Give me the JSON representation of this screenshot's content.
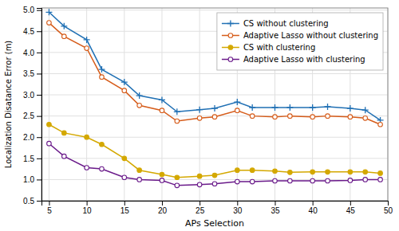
{
  "chart_data": {
    "type": "line",
    "x": [
      5,
      7,
      10,
      12,
      15,
      17,
      20,
      22,
      25,
      27,
      30,
      32,
      35,
      37,
      40,
      42,
      45,
      47,
      49
    ],
    "series": [
      {
        "name": "CS without clustering",
        "color": "#2070b4",
        "marker": "plus",
        "values": [
          4.95,
          4.62,
          4.3,
          3.6,
          3.3,
          2.98,
          2.88,
          2.6,
          2.65,
          2.68,
          2.83,
          2.7,
          2.7,
          2.7,
          2.7,
          2.72,
          2.68,
          2.64,
          2.4
        ]
      },
      {
        "name": "Adaptive Lasso without clustering",
        "color": "#d65c1a",
        "marker": "circle-open",
        "values": [
          4.7,
          4.38,
          4.1,
          3.42,
          3.1,
          2.75,
          2.63,
          2.38,
          2.45,
          2.48,
          2.63,
          2.5,
          2.48,
          2.5,
          2.48,
          2.5,
          2.48,
          2.45,
          2.3
        ]
      },
      {
        "name": "CS with clustering",
        "color": "#d4a800",
        "marker": "circle",
        "values": [
          2.3,
          2.1,
          2.0,
          1.83,
          1.5,
          1.22,
          1.12,
          1.05,
          1.08,
          1.1,
          1.22,
          1.22,
          1.2,
          1.17,
          1.18,
          1.18,
          1.18,
          1.18,
          1.15
        ]
      },
      {
        "name": "Adaptive Lasso with clustering",
        "color": "#6a1a8a",
        "marker": "circle-open",
        "values": [
          1.85,
          1.55,
          1.28,
          1.25,
          1.05,
          1.0,
          0.98,
          0.86,
          0.88,
          0.9,
          0.95,
          0.95,
          0.97,
          0.97,
          0.97,
          0.97,
          0.98,
          1.0,
          1.0
        ]
      }
    ],
    "x_label": "APs Selection",
    "y_label": "Localization Disatance Error (m)",
    "xlim": [
      4,
      50
    ],
    "ylim": [
      0.5,
      5.05
    ],
    "xticks": [
      5,
      10,
      15,
      20,
      25,
      30,
      35,
      40,
      45,
      50
    ],
    "yticks": [
      0.5,
      {
        "value": 1,
        "label": "1.0"
      },
      1.5,
      {
        "value": 2,
        "label": "2.0"
      },
      2.5,
      {
        "value": 3,
        "label": "3.0"
      },
      3.5,
      {
        "value": 4,
        "label": "4.0"
      },
      4.5,
      {
        "value": 5,
        "label": "5.0"
      }
    ],
    "grid": true,
    "legend": "upper right"
  }
}
